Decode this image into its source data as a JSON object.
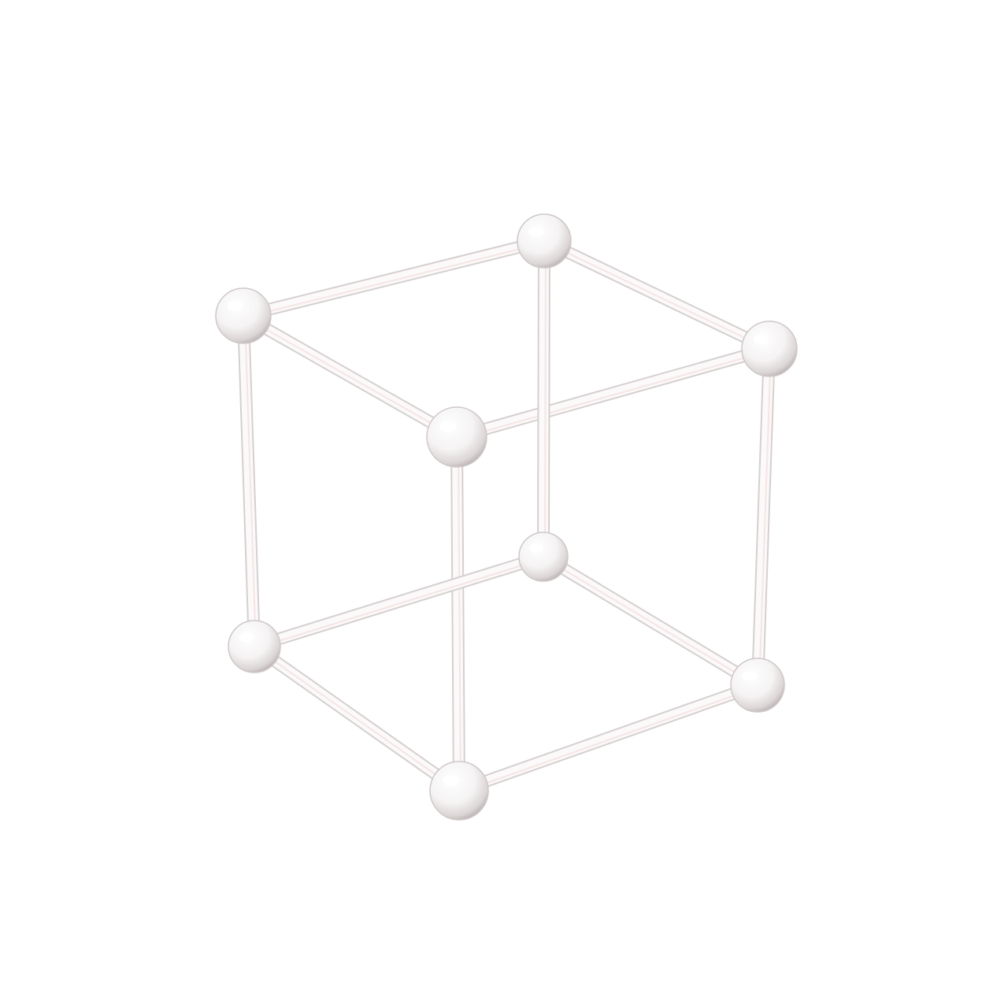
{
  "image": {
    "subject": "",
    "colors": {
      "background": "#ffffff",
      "rod": "#f2f0f0",
      "sphere": "#f4f2f2",
      "joint": "#1a1a1a"
    }
  }
}
